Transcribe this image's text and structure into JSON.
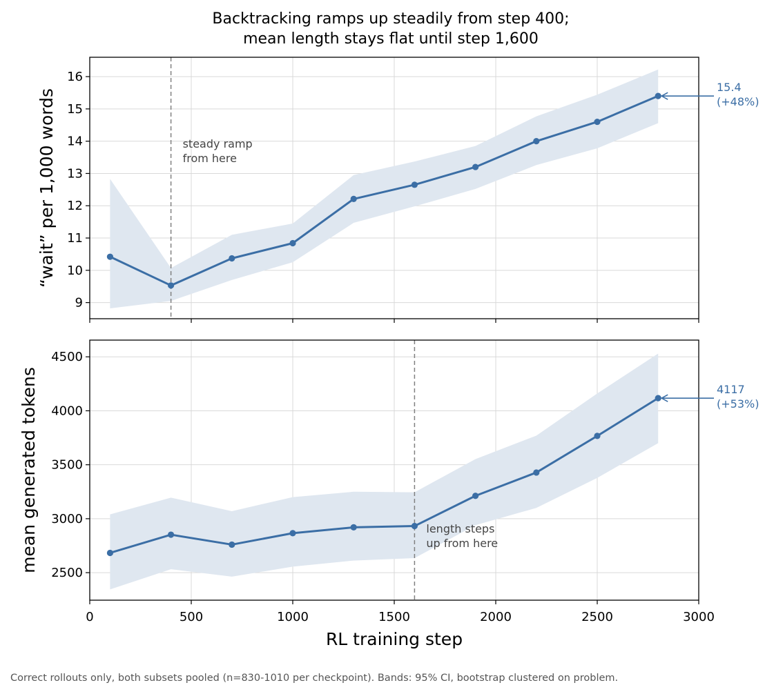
{
  "title_line1": "Backtracking ramps up steadily from step 400;",
  "title_line2": "mean length stays flat until step 1,600",
  "footnote": "Correct rollouts only, both subsets pooled (n=830-1010 per checkpoint). Bands: 95% CI, bootstrap clustered on problem.",
  "colors": {
    "series": "#3b6ea5",
    "band": "#dfe7f0",
    "marker_line": "#808080"
  },
  "chart_data": [
    {
      "type": "line",
      "ylabel": "“wait” per 1,000 words",
      "xlim": [
        0,
        3000
      ],
      "ylim": [
        8.5,
        16.6
      ],
      "yticks": [
        9,
        10,
        11,
        12,
        13,
        14,
        15,
        16
      ],
      "grid": true,
      "x": [
        100,
        400,
        700,
        1000,
        1300,
        1600,
        1900,
        2200,
        2500,
        2800
      ],
      "values": [
        10.42,
        9.53,
        10.37,
        10.84,
        12.21,
        12.65,
        13.2,
        14.0,
        14.6,
        15.4
      ],
      "ci_low": [
        8.82,
        9.05,
        9.7,
        10.25,
        11.47,
        11.98,
        12.52,
        13.26,
        13.78,
        14.56
      ],
      "ci_high": [
        12.83,
        10.07,
        11.1,
        11.45,
        12.95,
        13.37,
        13.85,
        14.77,
        15.44,
        16.22
      ],
      "vline_x": 400,
      "annotation": {
        "x": 400,
        "y": 13.8,
        "line1": "steady ramp",
        "line2": "from here"
      },
      "end_label": {
        "line1": "15.4",
        "line2": "(+48%)"
      }
    },
    {
      "type": "line",
      "ylabel": "mean generated tokens",
      "xlabel": "RL training step",
      "xlim": [
        0,
        3000
      ],
      "ylim": [
        2245,
        4655
      ],
      "xticks": [
        0,
        500,
        1000,
        1500,
        2000,
        2500,
        3000
      ],
      "yticks": [
        2500,
        3000,
        3500,
        4000,
        4500
      ],
      "grid": true,
      "x": [
        100,
        400,
        700,
        1000,
        1300,
        1600,
        1900,
        2200,
        2500,
        2800
      ],
      "values": [
        2683,
        2852,
        2760,
        2866,
        2920,
        2932,
        3212,
        3428,
        3767,
        4117
      ],
      "ci_low": [
        2345,
        2532,
        2463,
        2556,
        2612,
        2635,
        2940,
        3100,
        3378,
        3700
      ],
      "ci_high": [
        3040,
        3195,
        3070,
        3200,
        3250,
        3245,
        3552,
        3770,
        4160,
        4530
      ],
      "vline_x": 1600,
      "annotation": {
        "x": 1600,
        "y": 2870,
        "line1": "length steps",
        "line2": "up from here"
      },
      "end_label": {
        "line1": "4117",
        "line2": "(+53%)"
      }
    }
  ]
}
